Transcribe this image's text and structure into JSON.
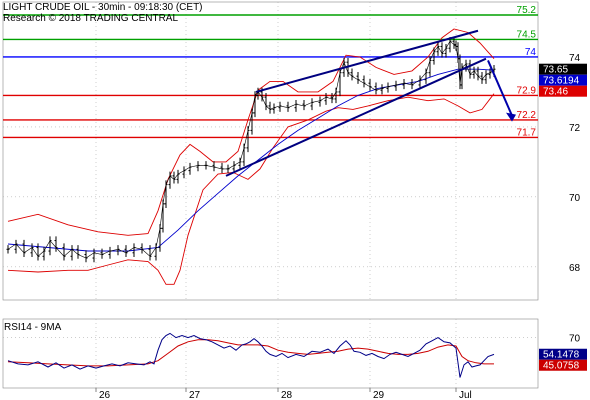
{
  "header": {
    "title": "LIGHT CRUDE OIL - 30min - 09:18:30 (CET)",
    "research": "Research © 2018 TRADING CENTRAL"
  },
  "colors": {
    "resistance": "#00a000",
    "pivot": "#0000ff",
    "support": "#e00000",
    "bollinger": "#dd0000",
    "moving_average": "#0000cc",
    "price": "#000000",
    "rsi": "#000088",
    "rsi_ma": "#cc0000",
    "trend_arrow": "#0000aa"
  },
  "chart_data": [
    {
      "type": "line",
      "title": "LIGHT CRUDE OIL - 30min",
      "y_axis_ticks": [
        "74",
        "72",
        "70",
        "68"
      ],
      "x_axis_labels": [
        "26",
        "27",
        "28",
        "29",
        "Jul"
      ],
      "ylim": [
        67.05,
        75.4
      ],
      "levels": [
        {
          "label": "75.2",
          "value": 75.2,
          "kind": "resistance"
        },
        {
          "label": "74.5",
          "value": 74.5,
          "kind": "resistance"
        },
        {
          "label": "74",
          "value": 74.0,
          "kind": "pivot"
        },
        {
          "label": "72.9",
          "value": 72.9,
          "kind": "support"
        },
        {
          "label": "72.2",
          "value": 72.2,
          "kind": "support"
        },
        {
          "label": "71.7",
          "value": 71.7,
          "kind": "support"
        }
      ],
      "value_badges": [
        {
          "label": "73.65",
          "value": 73.65,
          "bg": "#000000"
        },
        {
          "label": "73.6194",
          "value": 73.6194,
          "bg": "#0000cc"
        },
        {
          "label": "73.46",
          "value": 73.46,
          "bg": "#dd0000"
        }
      ],
      "price_series": [
        [
          0,
          68.5
        ],
        [
          8,
          68.65
        ],
        [
          16,
          68.4
        ],
        [
          24,
          68.55
        ],
        [
          30,
          68.3
        ],
        [
          36,
          68.45
        ],
        [
          42,
          68.75
        ],
        [
          48,
          68.55
        ],
        [
          56,
          68.3
        ],
        [
          64,
          68.5
        ],
        [
          70,
          68.35
        ],
        [
          78,
          68.25
        ],
        [
          86,
          68.4
        ],
        [
          94,
          68.35
        ],
        [
          102,
          68.45
        ],
        [
          110,
          68.5
        ],
        [
          118,
          68.4
        ],
        [
          126,
          68.55
        ],
        [
          134,
          68.5
        ],
        [
          142,
          68.3
        ],
        [
          148,
          68.55
        ],
        [
          152,
          69.1
        ],
        [
          155,
          69.8
        ],
        [
          158,
          70.35
        ],
        [
          162,
          70.6
        ],
        [
          166,
          70.5
        ],
        [
          170,
          70.65
        ],
        [
          176,
          70.75
        ],
        [
          182,
          70.85
        ],
        [
          190,
          70.9
        ],
        [
          198,
          70.9
        ],
        [
          206,
          70.85
        ],
        [
          214,
          70.8
        ],
        [
          220,
          70.8
        ],
        [
          226,
          70.9
        ],
        [
          232,
          71.0
        ],
        [
          236,
          71.4
        ],
        [
          240,
          71.9
        ],
        [
          244,
          72.4
        ],
        [
          247,
          72.9
        ],
        [
          250,
          73.0
        ],
        [
          254,
          72.85
        ],
        [
          258,
          72.6
        ],
        [
          262,
          72.5
        ],
        [
          266,
          72.55
        ],
        [
          272,
          72.6
        ],
        [
          280,
          72.55
        ],
        [
          288,
          72.65
        ],
        [
          296,
          72.6
        ],
        [
          304,
          72.7
        ],
        [
          312,
          72.75
        ],
        [
          318,
          72.85
        ],
        [
          324,
          72.8
        ],
        [
          328,
          73.0
        ],
        [
          332,
          73.55
        ],
        [
          336,
          73.85
        ],
        [
          340,
          73.55
        ],
        [
          344,
          73.45
        ],
        [
          350,
          73.35
        ],
        [
          356,
          73.25
        ],
        [
          362,
          73.15
        ],
        [
          368,
          73.05
        ],
        [
          374,
          73.1
        ],
        [
          380,
          73.15
        ],
        [
          388,
          73.2
        ],
        [
          396,
          73.25
        ],
        [
          404,
          73.2
        ],
        [
          412,
          73.35
        ],
        [
          418,
          73.55
        ],
        [
          422,
          73.9
        ],
        [
          426,
          74.15
        ],
        [
          430,
          74.3
        ],
        [
          434,
          74.1
        ],
        [
          438,
          74.25
        ],
        [
          442,
          74.45
        ],
        [
          446,
          74.35
        ],
        [
          448,
          74.3
        ],
        [
          450,
          73.95
        ],
        [
          452,
          73.2
        ],
        [
          454,
          73.7
        ],
        [
          458,
          73.8
        ],
        [
          462,
          73.5
        ],
        [
          466,
          73.6
        ],
        [
          470,
          73.45
        ],
        [
          474,
          73.35
        ],
        [
          478,
          73.5
        ],
        [
          482,
          73.55
        ],
        [
          486,
          73.65
        ]
      ],
      "ma_series": [
        [
          0,
          68.65
        ],
        [
          40,
          68.55
        ],
        [
          80,
          68.45
        ],
        [
          120,
          68.45
        ],
        [
          150,
          68.55
        ],
        [
          170,
          69.05
        ],
        [
          190,
          69.6
        ],
        [
          210,
          70.1
        ],
        [
          230,
          70.6
        ],
        [
          250,
          71.05
        ],
        [
          270,
          71.5
        ],
        [
          290,
          71.9
        ],
        [
          310,
          72.25
        ],
        [
          330,
          72.6
        ],
        [
          350,
          72.9
        ],
        [
          370,
          73.1
        ],
        [
          390,
          73.2
        ],
        [
          410,
          73.3
        ],
        [
          430,
          73.5
        ],
        [
          450,
          73.65
        ],
        [
          470,
          73.65
        ],
        [
          486,
          73.62
        ]
      ],
      "bollinger_upper": [
        [
          0,
          69.3
        ],
        [
          30,
          69.5
        ],
        [
          60,
          69.2
        ],
        [
          90,
          69.0
        ],
        [
          120,
          68.9
        ],
        [
          140,
          68.95
        ],
        [
          150,
          69.6
        ],
        [
          160,
          70.5
        ],
        [
          172,
          71.2
        ],
        [
          182,
          71.5
        ],
        [
          192,
          71.3
        ],
        [
          205,
          71.0
        ],
        [
          218,
          71.0
        ],
        [
          230,
          71.3
        ],
        [
          240,
          72.2
        ],
        [
          250,
          73.05
        ],
        [
          262,
          73.3
        ],
        [
          275,
          73.3
        ],
        [
          290,
          73.0
        ],
        [
          310,
          73.0
        ],
        [
          325,
          73.3
        ],
        [
          338,
          74.05
        ],
        [
          352,
          74.0
        ],
        [
          368,
          73.7
        ],
        [
          386,
          73.5
        ],
        [
          404,
          73.6
        ],
        [
          420,
          74.0
        ],
        [
          434,
          74.55
        ],
        [
          446,
          74.8
        ],
        [
          460,
          74.7
        ],
        [
          472,
          74.4
        ],
        [
          486,
          73.95
        ]
      ],
      "bollinger_lower": [
        [
          0,
          67.9
        ],
        [
          30,
          67.85
        ],
        [
          60,
          67.9
        ],
        [
          80,
          67.9
        ],
        [
          100,
          68.05
        ],
        [
          120,
          68.2
        ],
        [
          140,
          68.15
        ],
        [
          150,
          67.9
        ],
        [
          158,
          67.5
        ],
        [
          166,
          67.5
        ],
        [
          172,
          67.9
        ],
        [
          180,
          68.9
        ],
        [
          195,
          70.2
        ],
        [
          210,
          70.65
        ],
        [
          225,
          70.7
        ],
        [
          240,
          70.5
        ],
        [
          252,
          70.8
        ],
        [
          265,
          71.4
        ],
        [
          280,
          72.0
        ],
        [
          300,
          72.2
        ],
        [
          318,
          72.45
        ],
        [
          330,
          72.55
        ],
        [
          345,
          72.5
        ],
        [
          360,
          72.6
        ],
        [
          380,
          72.75
        ],
        [
          400,
          72.85
        ],
        [
          420,
          72.75
        ],
        [
          436,
          72.8
        ],
        [
          450,
          72.6
        ],
        [
          462,
          72.4
        ],
        [
          474,
          72.5
        ],
        [
          486,
          72.95
        ]
      ],
      "channel_upper": {
        "from": [
          248,
          73.0
        ],
        "to": [
          470,
          74.75
        ]
      },
      "channel_lower": {
        "from": [
          218,
          70.6
        ],
        "to": [
          478,
          73.95
        ]
      },
      "trend_arrow": {
        "from": [
          480,
          73.9
        ],
        "to": [
          504,
          72.15
        ]
      }
    },
    {
      "type": "line",
      "title": "RSI14 - 9MA",
      "y_axis_ticks": [
        "70"
      ],
      "ylim": [
        22,
        82
      ],
      "value_badges": [
        {
          "label": "54.1478",
          "value": 54.1478,
          "bg": "#000088"
        },
        {
          "label": "45.0758",
          "value": 45.0758,
          "bg": "#cc0000"
        }
      ],
      "rsi_series": [
        [
          0,
          48
        ],
        [
          10,
          45
        ],
        [
          20,
          44
        ],
        [
          30,
          47
        ],
        [
          40,
          42
        ],
        [
          48,
          46
        ],
        [
          56,
          41
        ],
        [
          64,
          44
        ],
        [
          72,
          40
        ],
        [
          80,
          43
        ],
        [
          88,
          41
        ],
        [
          96,
          43
        ],
        [
          104,
          45
        ],
        [
          112,
          43
        ],
        [
          120,
          46
        ],
        [
          128,
          45
        ],
        [
          136,
          44
        ],
        [
          142,
          47
        ],
        [
          146,
          45
        ],
        [
          150,
          58
        ],
        [
          154,
          68
        ],
        [
          158,
          72
        ],
        [
          162,
          74
        ],
        [
          168,
          70
        ],
        [
          174,
          72
        ],
        [
          180,
          70
        ],
        [
          186,
          72
        ],
        [
          192,
          69
        ],
        [
          198,
          68
        ],
        [
          204,
          66
        ],
        [
          210,
          63
        ],
        [
          216,
          60
        ],
        [
          222,
          62
        ],
        [
          228,
          58
        ],
        [
          234,
          63
        ],
        [
          238,
          64
        ],
        [
          242,
          66
        ],
        [
          246,
          69
        ],
        [
          250,
          66
        ],
        [
          254,
          62
        ],
        [
          258,
          57
        ],
        [
          262,
          54
        ],
        [
          268,
          52
        ],
        [
          274,
          55
        ],
        [
          280,
          51
        ],
        [
          288,
          54
        ],
        [
          296,
          52
        ],
        [
          304,
          57
        ],
        [
          312,
          56
        ],
        [
          320,
          59
        ],
        [
          326,
          55
        ],
        [
          332,
          62
        ],
        [
          338,
          67
        ],
        [
          342,
          63
        ],
        [
          346,
          57
        ],
        [
          352,
          56
        ],
        [
          358,
          53
        ],
        [
          364,
          55
        ],
        [
          370,
          52
        ],
        [
          376,
          50
        ],
        [
          382,
          54
        ],
        [
          388,
          56
        ],
        [
          394,
          54
        ],
        [
          400,
          52
        ],
        [
          406,
          55
        ],
        [
          412,
          58
        ],
        [
          418,
          64
        ],
        [
          424,
          67
        ],
        [
          430,
          70
        ],
        [
          436,
          66
        ],
        [
          442,
          65
        ],
        [
          448,
          60
        ],
        [
          450,
          46
        ],
        [
          452,
          32
        ],
        [
          456,
          44
        ],
        [
          460,
          47
        ],
        [
          464,
          42
        ],
        [
          468,
          43
        ],
        [
          472,
          44
        ],
        [
          476,
          48
        ],
        [
          480,
          52
        ],
        [
          486,
          54
        ]
      ],
      "rsi_ma_series": [
        [
          0,
          47
        ],
        [
          20,
          46
        ],
        [
          40,
          45
        ],
        [
          60,
          44
        ],
        [
          80,
          43
        ],
        [
          100,
          43
        ],
        [
          120,
          44
        ],
        [
          140,
          45
        ],
        [
          150,
          48
        ],
        [
          160,
          55
        ],
        [
          170,
          62
        ],
        [
          180,
          66
        ],
        [
          190,
          68
        ],
        [
          200,
          68
        ],
        [
          210,
          67
        ],
        [
          220,
          65
        ],
        [
          230,
          63
        ],
        [
          240,
          63
        ],
        [
          250,
          63
        ],
        [
          260,
          62
        ],
        [
          270,
          58
        ],
        [
          280,
          56
        ],
        [
          290,
          55
        ],
        [
          300,
          54
        ],
        [
          310,
          55
        ],
        [
          320,
          56
        ],
        [
          330,
          57
        ],
        [
          340,
          59
        ],
        [
          350,
          60
        ],
        [
          360,
          59
        ],
        [
          370,
          57
        ],
        [
          380,
          55
        ],
        [
          390,
          54
        ],
        [
          400,
          54
        ],
        [
          410,
          55
        ],
        [
          420,
          57
        ],
        [
          430,
          61
        ],
        [
          440,
          63
        ],
        [
          448,
          62
        ],
        [
          454,
          52
        ],
        [
          460,
          48
        ],
        [
          468,
          46
        ],
        [
          476,
          45
        ],
        [
          486,
          45
        ]
      ]
    }
  ]
}
